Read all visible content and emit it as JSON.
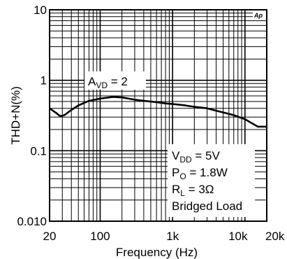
{
  "chart_data": {
    "type": "line",
    "xlabel": "Frequency (Hz)",
    "ylabel": "THD+N(%)",
    "xscale": "log",
    "yscale": "log",
    "xlim": [
      20,
      20000
    ],
    "ylim": [
      0.01,
      10
    ],
    "grid": true,
    "xticks": [
      {
        "value": 20,
        "label": "20"
      },
      {
        "value": 100,
        "label": "100"
      },
      {
        "value": 1000,
        "label": "1k"
      },
      {
        "value": 10000,
        "label": "10k"
      },
      {
        "value": 20000,
        "label": "20k"
      }
    ],
    "yticks": [
      {
        "value": 10,
        "label": "10"
      },
      {
        "value": 1,
        "label": "1"
      },
      {
        "value": 0.1,
        "label": "0.1"
      },
      {
        "value": 0.01,
        "label": "0.010"
      }
    ],
    "series": [
      {
        "x": [
          20,
          25,
          28,
          32,
          40,
          50,
          70,
          100,
          150,
          200,
          300,
          400,
          600,
          800,
          1000,
          1500,
          2000,
          3000,
          4000,
          5000,
          7000,
          10000,
          13000,
          15000,
          20000
        ],
        "y": [
          0.4,
          0.34,
          0.31,
          0.32,
          0.38,
          0.44,
          0.51,
          0.55,
          0.58,
          0.57,
          0.53,
          0.51,
          0.49,
          0.47,
          0.46,
          0.44,
          0.42,
          0.4,
          0.37,
          0.35,
          0.32,
          0.28,
          0.24,
          0.22,
          0.22
        ]
      }
    ],
    "annotations": {
      "gain_label": "A",
      "gain_sub": "VD",
      "gain_value": " = 2",
      "conditions": [
        {
          "main": "V",
          "sub": "DD",
          "rest": " = 5V"
        },
        {
          "main": "P",
          "sub": "O",
          "rest": " = 1.8W"
        },
        {
          "main": "R",
          "sub": "L",
          "rest": "  =  3Ω"
        },
        {
          "main": "Bridged Load",
          "sub": "",
          "rest": ""
        }
      ],
      "brand": "Ap"
    },
    "colors": {
      "line": "#000000",
      "grid": "#000000",
      "background": "#ffffff"
    }
  }
}
